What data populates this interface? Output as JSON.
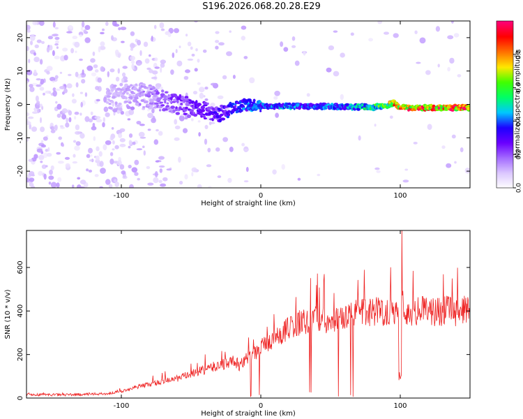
{
  "title": "S196.2026.068.20.28.E29",
  "colors": {
    "snr_line": "#ee2020",
    "axis": "#000000",
    "background": "#ffffff",
    "colormap": [
      "#ffffff",
      "#dcc8ff",
      "#a46cff",
      "#6a00ff",
      "#1e00ff",
      "#00c8ff",
      "#00ff66",
      "#40ff00",
      "#ffe800",
      "#ff7000",
      "#ff0000",
      "#ff0077"
    ]
  },
  "chart_data": [
    {
      "type": "heatmap",
      "title": "",
      "xlabel": "Height of straight line (km)",
      "ylabel": "Frequency (Hz)",
      "xlim": [
        -168,
        150
      ],
      "ylim": [
        -25,
        25
      ],
      "xticks": [
        -100,
        0,
        100
      ],
      "yticks": [
        -20,
        -10,
        0,
        10,
        20
      ],
      "grid": false,
      "ridge": {
        "description_free": true,
        "x": [
          -100,
          -80,
          -60,
          -40,
          -30,
          -20,
          -10,
          0,
          20,
          40,
          60,
          80,
          90,
          95,
          100,
          150
        ],
        "freq": [
          2,
          2.5,
          0,
          -2,
          -3,
          -1,
          0,
          -0.5,
          -0.5,
          -0.6,
          -0.7,
          -0.8,
          -0.5,
          0.5,
          -1,
          -1
        ],
        "amplitude": [
          0.12,
          0.18,
          0.25,
          0.3,
          0.32,
          0.38,
          0.42,
          0.45,
          0.45,
          0.42,
          0.45,
          0.55,
          0.7,
          0.85,
          0.95,
          0.95
        ]
      },
      "colorbar": {
        "label": "Normalized spectral amplitude",
        "range": [
          0,
          1
        ],
        "ticks": [
          0.0,
          0.2,
          0.4,
          0.6,
          0.8
        ],
        "tick_labels": [
          "0.0",
          "0.2",
          "0.4",
          "0.6",
          "0.8"
        ]
      }
    },
    {
      "type": "line",
      "title": "",
      "xlabel": "Height of straight line (km)",
      "ylabel": "SNR (10 * v/v)",
      "xlim": [
        -168,
        150
      ],
      "ylim": [
        0,
        770
      ],
      "xticks": [
        -100,
        0,
        100
      ],
      "yticks": [
        0,
        200,
        400,
        600
      ],
      "grid": false,
      "series": [
        {
          "name": "SNR",
          "x": [
            -168,
            -140,
            -110,
            -100,
            -90,
            -75,
            -60,
            -50,
            -40,
            -30,
            -20,
            -15,
            -10,
            -5,
            0,
            5,
            10,
            15,
            20,
            25,
            30,
            35,
            40,
            45,
            50,
            55,
            60,
            70,
            80,
            90,
            95,
            98,
            100,
            101,
            102,
            105,
            110,
            120,
            130,
            140,
            150
          ],
          "y": [
            15,
            15,
            20,
            30,
            50,
            70,
            90,
            110,
            130,
            150,
            170,
            150,
            180,
            200,
            240,
            250,
            270,
            300,
            320,
            340,
            350,
            360,
            360,
            370,
            340,
            360,
            380,
            390,
            400,
            400,
            400,
            420,
            380,
            760,
            380,
            390,
            400,
            400,
            400,
            400,
            400
          ]
        }
      ]
    }
  ]
}
